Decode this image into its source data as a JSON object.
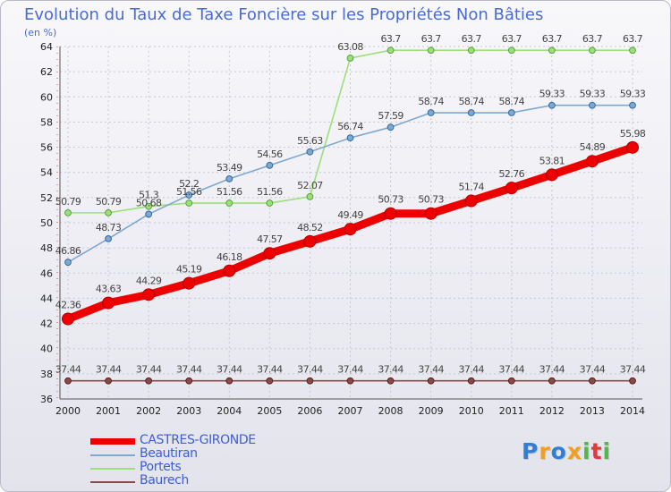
{
  "header": {
    "title": "Evolution du Taux de Taxe Foncière sur les Propriétés Non Bâties",
    "unit": "(en %)"
  },
  "brand": {
    "text": "Proxiti",
    "letters": [
      "P",
      "r",
      "o",
      "x",
      "i",
      "t",
      "i"
    ],
    "colors": [
      "#2f7fd6",
      "#f0a020",
      "#2f7fd6",
      "#f0a020",
      "#52b848",
      "#e03a3a",
      "#52b848"
    ]
  },
  "chart_data": {
    "type": "line",
    "title": "Evolution du Taux de Taxe Foncière sur les Propriétés Non Bâties",
    "ylabel": "(en %)",
    "xlabel": "",
    "ylim": [
      36,
      64
    ],
    "yticks": [
      36,
      38,
      40,
      42,
      44,
      46,
      48,
      50,
      52,
      54,
      56,
      58,
      60,
      62,
      64
    ],
    "categories": [
      "2000",
      "2001",
      "2002",
      "2003",
      "2004",
      "2005",
      "2006",
      "2007",
      "2008",
      "2009",
      "2010",
      "2011",
      "2012",
      "2013",
      "2014"
    ],
    "grid": true,
    "legend": "bottom-left",
    "series": [
      {
        "name": "CASTRES-GIRONDE",
        "color": "#ee0000",
        "values": [
          42.36,
          43.63,
          44.29,
          45.19,
          46.18,
          47.57,
          48.52,
          49.49,
          50.73,
          50.73,
          51.74,
          52.76,
          53.81,
          54.89,
          55.98
        ],
        "labels": [
          "42.36",
          "43.63",
          "44.29",
          "45.19",
          "46.18",
          "47.57",
          "48.52",
          "49.49",
          "50.73",
          "50.73",
          "51.74",
          "52.76",
          "53.81",
          "54.89",
          "55.98"
        ]
      },
      {
        "name": "Beautiran",
        "color": "#7fa8cf",
        "values": [
          46.86,
          48.73,
          50.68,
          52.2,
          53.49,
          54.56,
          55.63,
          56.74,
          57.59,
          58.74,
          58.74,
          58.74,
          59.33,
          59.33,
          59.33
        ],
        "labels": [
          "46.86",
          "48.73",
          "50.68",
          "52.2",
          "53.49",
          "54.56",
          "55.63",
          "56.74",
          "57.59",
          "58.74",
          "58.74",
          "58.74",
          "59.33",
          "59.33",
          "59.33"
        ]
      },
      {
        "name": "Portets",
        "color": "#9be07a",
        "values": [
          50.79,
          50.79,
          51.3,
          51.56,
          51.56,
          51.56,
          52.07,
          63.08,
          63.7,
          63.7,
          63.7,
          63.7,
          63.7,
          63.7,
          63.7
        ],
        "labels": [
          "50.79",
          "50.79",
          "51.3",
          "51.56",
          "51.56",
          "51.56",
          "52.07",
          "63.08",
          "63.7",
          "63.7",
          "63.7",
          "63.7",
          "63.7",
          "63.7",
          "63.7"
        ]
      },
      {
        "name": "Baurech",
        "color": "#8a4a4a",
        "values": [
          37.44,
          37.44,
          37.44,
          37.44,
          37.44,
          37.44,
          37.44,
          37.44,
          37.44,
          37.44,
          37.44,
          37.44,
          37.44,
          37.44,
          37.44
        ],
        "labels": [
          "37.44",
          "37.44",
          "37.44",
          "37.44",
          "37.44",
          "37.44",
          "37.44",
          "37.44",
          "37.44",
          "37.44",
          "37.44",
          "37.44",
          "37.44",
          "37.44",
          "37.44"
        ]
      }
    ]
  }
}
